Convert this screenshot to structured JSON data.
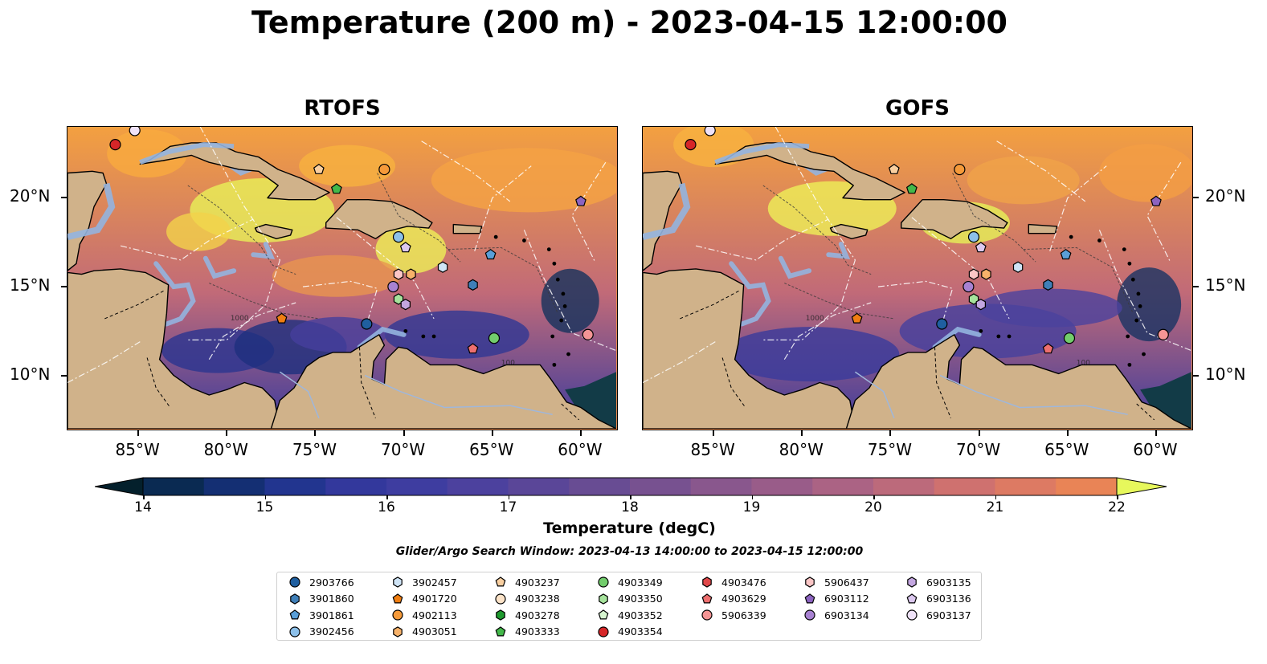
{
  "title": "Temperature (200 m) - 2023-04-15 12:00:00",
  "panels": [
    {
      "title": "RTOFS",
      "id": "rtofs"
    },
    {
      "title": "GOFS",
      "id": "gofs"
    }
  ],
  "axes": {
    "x_ticks": [
      "85°W",
      "80°W",
      "75°W",
      "70°W",
      "65°W",
      "60°W"
    ],
    "y_ticks": [
      "20°N",
      "15°N",
      "10°N"
    ]
  },
  "contour_labels": [
    "100",
    "1000"
  ],
  "colorbar": {
    "label": "Temperature (degC)",
    "min": 14,
    "max": 22,
    "step": 0.5,
    "ticks": [
      "14",
      "15",
      "16",
      "17",
      "18",
      "19",
      "20",
      "21",
      "22"
    ],
    "extend": "both",
    "colormap": "thermal",
    "colors": [
      "#04202c",
      "#0a2a52",
      "#142f73",
      "#22358f",
      "#33389c",
      "#3e3da0",
      "#4c419e",
      "#5a4698",
      "#684c93",
      "#775190",
      "#89578d",
      "#995c89",
      "#ab6384",
      "#bc6a7b",
      "#cf716f",
      "#dd7a63",
      "#e98456",
      "#f09049",
      "#f79e40",
      "#f7ae3d",
      "#f6c13e",
      "#f3d444",
      "#f1e84f",
      "#e7f85c"
    ]
  },
  "search_window": "Glider/Argo Search Window: 2023-04-13 14:00:00 to 2023-04-15 12:00:00",
  "legend": {
    "columns": [
      [
        {
          "id": "2903766",
          "marker": "circle",
          "color": "#1f5fa0"
        },
        {
          "id": "3901860",
          "marker": "hexagon",
          "color": "#3f7fb8"
        },
        {
          "id": "3901861",
          "marker": "pentagon",
          "color": "#5a9fd8"
        },
        {
          "id": "3902456",
          "marker": "circle",
          "color": "#8cc0ea"
        }
      ],
      [
        {
          "id": "3902457",
          "marker": "hexagon",
          "color": "#cfe4f6"
        },
        {
          "id": "4901720",
          "marker": "pentagon",
          "color": "#f07e12"
        },
        {
          "id": "4902113",
          "marker": "circle",
          "color": "#f59a3a"
        },
        {
          "id": "4903051",
          "marker": "hexagon",
          "color": "#f7b26a"
        }
      ],
      [
        {
          "id": "4903237",
          "marker": "pentagon",
          "color": "#f9cfa0"
        },
        {
          "id": "4903238",
          "marker": "circle",
          "color": "#fce3c8"
        },
        {
          "id": "4903278",
          "marker": "hexagon",
          "color": "#1f9a2f"
        },
        {
          "id": "4903333",
          "marker": "pentagon",
          "color": "#43b84a"
        }
      ],
      [
        {
          "id": "4903349",
          "marker": "circle",
          "color": "#72cd6c"
        },
        {
          "id": "4903350",
          "marker": "hexagon",
          "color": "#a6e39c"
        },
        {
          "id": "4903352",
          "marker": "pentagon",
          "color": "#d6f5cf"
        },
        {
          "id": "4903354",
          "marker": "circle",
          "color": "#d62628"
        }
      ],
      [
        {
          "id": "4903476",
          "marker": "hexagon",
          "color": "#e0484a"
        },
        {
          "id": "4903629",
          "marker": "pentagon",
          "color": "#ee6f6f"
        },
        {
          "id": "5906339",
          "marker": "circle",
          "color": "#f59595"
        }
      ],
      [
        {
          "id": "5906437",
          "marker": "hexagon",
          "color": "#fbc6c6"
        },
        {
          "id": "6903112",
          "marker": "pentagon",
          "color": "#8c63c0"
        },
        {
          "id": "6903134",
          "marker": "circle",
          "color": "#a882d2"
        }
      ],
      [
        {
          "id": "6903135",
          "marker": "hexagon",
          "color": "#c3a6e0"
        },
        {
          "id": "6903136",
          "marker": "pentagon",
          "color": "#dcc8ef"
        },
        {
          "id": "6903137",
          "marker": "circle",
          "color": "#efe2f8"
        }
      ]
    ]
  },
  "map_extent": {
    "lon": [
      -89,
      -58
    ],
    "lat": [
      7,
      24
    ]
  },
  "floats": [
    {
      "id": "4903354",
      "lon": -86.3,
      "lat": 23.0
    },
    {
      "id": "6903137",
      "lon": -85.2,
      "lat": 23.8
    },
    {
      "id": "4903237",
      "lon": -74.8,
      "lat": 21.6
    },
    {
      "id": "4902113",
      "lon": -71.1,
      "lat": 21.6
    },
    {
      "id": "4903333",
      "lon": -73.8,
      "lat": 20.5
    },
    {
      "id": "6903112",
      "lon": -60.0,
      "lat": 19.8
    },
    {
      "id": "3902456",
      "lon": -70.3,
      "lat": 17.8
    },
    {
      "id": "6903136",
      "lon": -69.9,
      "lat": 17.2
    },
    {
      "id": "3901861",
      "lon": -65.1,
      "lat": 16.8
    },
    {
      "id": "3902457",
      "lon": -67.8,
      "lat": 16.1
    },
    {
      "id": "5906437",
      "lon": -70.3,
      "lat": 15.7
    },
    {
      "id": "4903051",
      "lon": -69.6,
      "lat": 15.7
    },
    {
      "id": "3901860",
      "lon": -66.1,
      "lat": 15.1
    },
    {
      "id": "6903134",
      "lon": -70.6,
      "lat": 15.0
    },
    {
      "id": "4903350",
      "lon": -70.3,
      "lat": 14.3
    },
    {
      "id": "6903135",
      "lon": -69.9,
      "lat": 14.0
    },
    {
      "id": "4901720",
      "lon": -76.9,
      "lat": 13.2
    },
    {
      "id": "2903766",
      "lon": -72.1,
      "lat": 12.9
    },
    {
      "id": "5906339",
      "lon": -59.6,
      "lat": 12.3
    },
    {
      "id": "4903349",
      "lon": -64.9,
      "lat": 12.1
    },
    {
      "id": "4903629",
      "lon": -66.1,
      "lat": 11.5
    }
  ]
}
